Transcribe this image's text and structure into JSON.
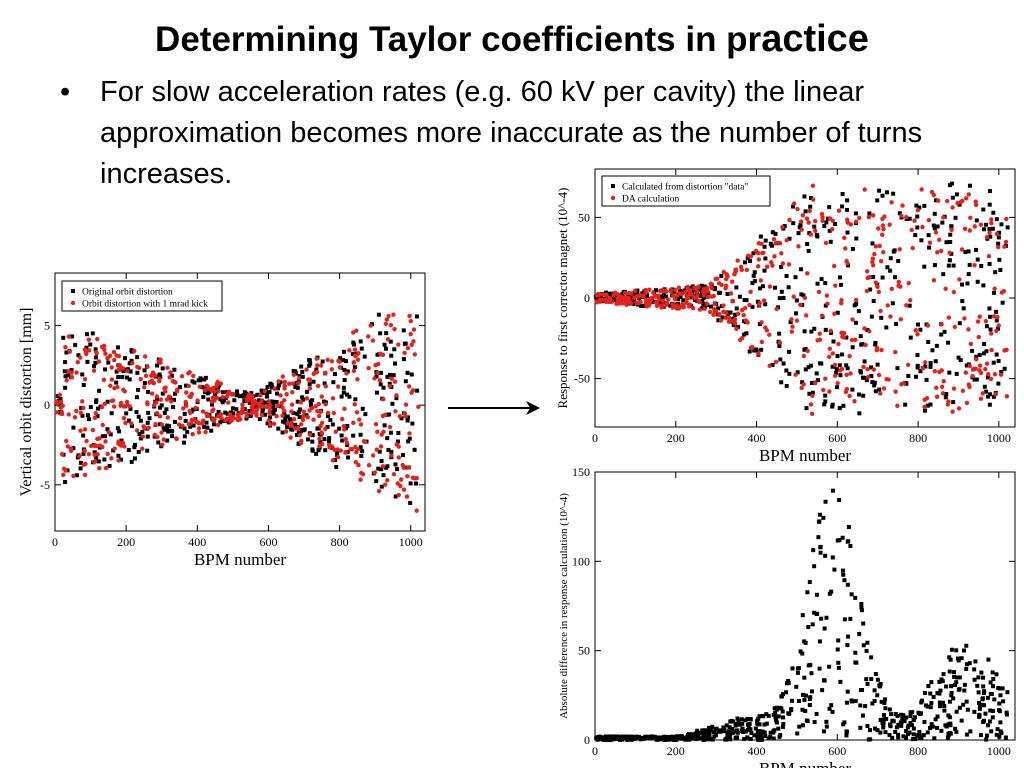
{
  "slide": {
    "title_main": "Determining Taylor coefficients in pr",
    "title_tail": "actice",
    "bullet_symbol": "•",
    "bullet_text": "For slow acceleration rates (e.g. 60 kV per cavity) the linear approximation becomes more inaccurate as the number of turns increases."
  },
  "colors": {
    "black": "#000000",
    "red": "#e8201a"
  },
  "chart_data": [
    {
      "id": "left",
      "type": "scatter",
      "xlabel": "BPM number",
      "ylabel": "Vertical orbit distortion [mm]",
      "xlim": [
        0,
        1040
      ],
      "ylim": [
        -7.9,
        8.3
      ],
      "xticks": [
        0,
        200,
        400,
        600,
        800,
        1000
      ],
      "yticks": [
        -5,
        0,
        5
      ],
      "legend_position": "top-left",
      "series": [
        {
          "name": "Original orbit distortion",
          "color": "#000000",
          "marker": "square"
        },
        {
          "name": "Orbit distortion with 1 mrad kick",
          "color": "#e8201a",
          "marker": "circle"
        }
      ]
    },
    {
      "id": "top-right",
      "type": "scatter",
      "xlabel": "BPM number",
      "ylabel": "Response to first corrector magnet (10^-4)",
      "xlim": [
        0,
        1040
      ],
      "ylim": [
        -80,
        80
      ],
      "xticks": [
        0,
        200,
        400,
        600,
        800,
        1000
      ],
      "yticks": [
        -50,
        0,
        50
      ],
      "legend_position": "top-left",
      "series": [
        {
          "name": "Calculated from distortion \"data\"",
          "color": "#000000",
          "marker": "square"
        },
        {
          "name": "DA calculation",
          "color": "#e8201a",
          "marker": "circle"
        }
      ]
    },
    {
      "id": "bottom-right",
      "type": "scatter",
      "xlabel": "BPM number",
      "ylabel": "Absolute difference in response calculation (10^-4)",
      "xlim": [
        0,
        1040
      ],
      "ylim": [
        0,
        150
      ],
      "xticks": [
        0,
        200,
        400,
        600,
        800,
        1000
      ],
      "yticks": [
        0,
        50,
        100,
        150
      ],
      "series": [
        {
          "name": "",
          "color": "#000000",
          "marker": "square"
        }
      ]
    }
  ]
}
